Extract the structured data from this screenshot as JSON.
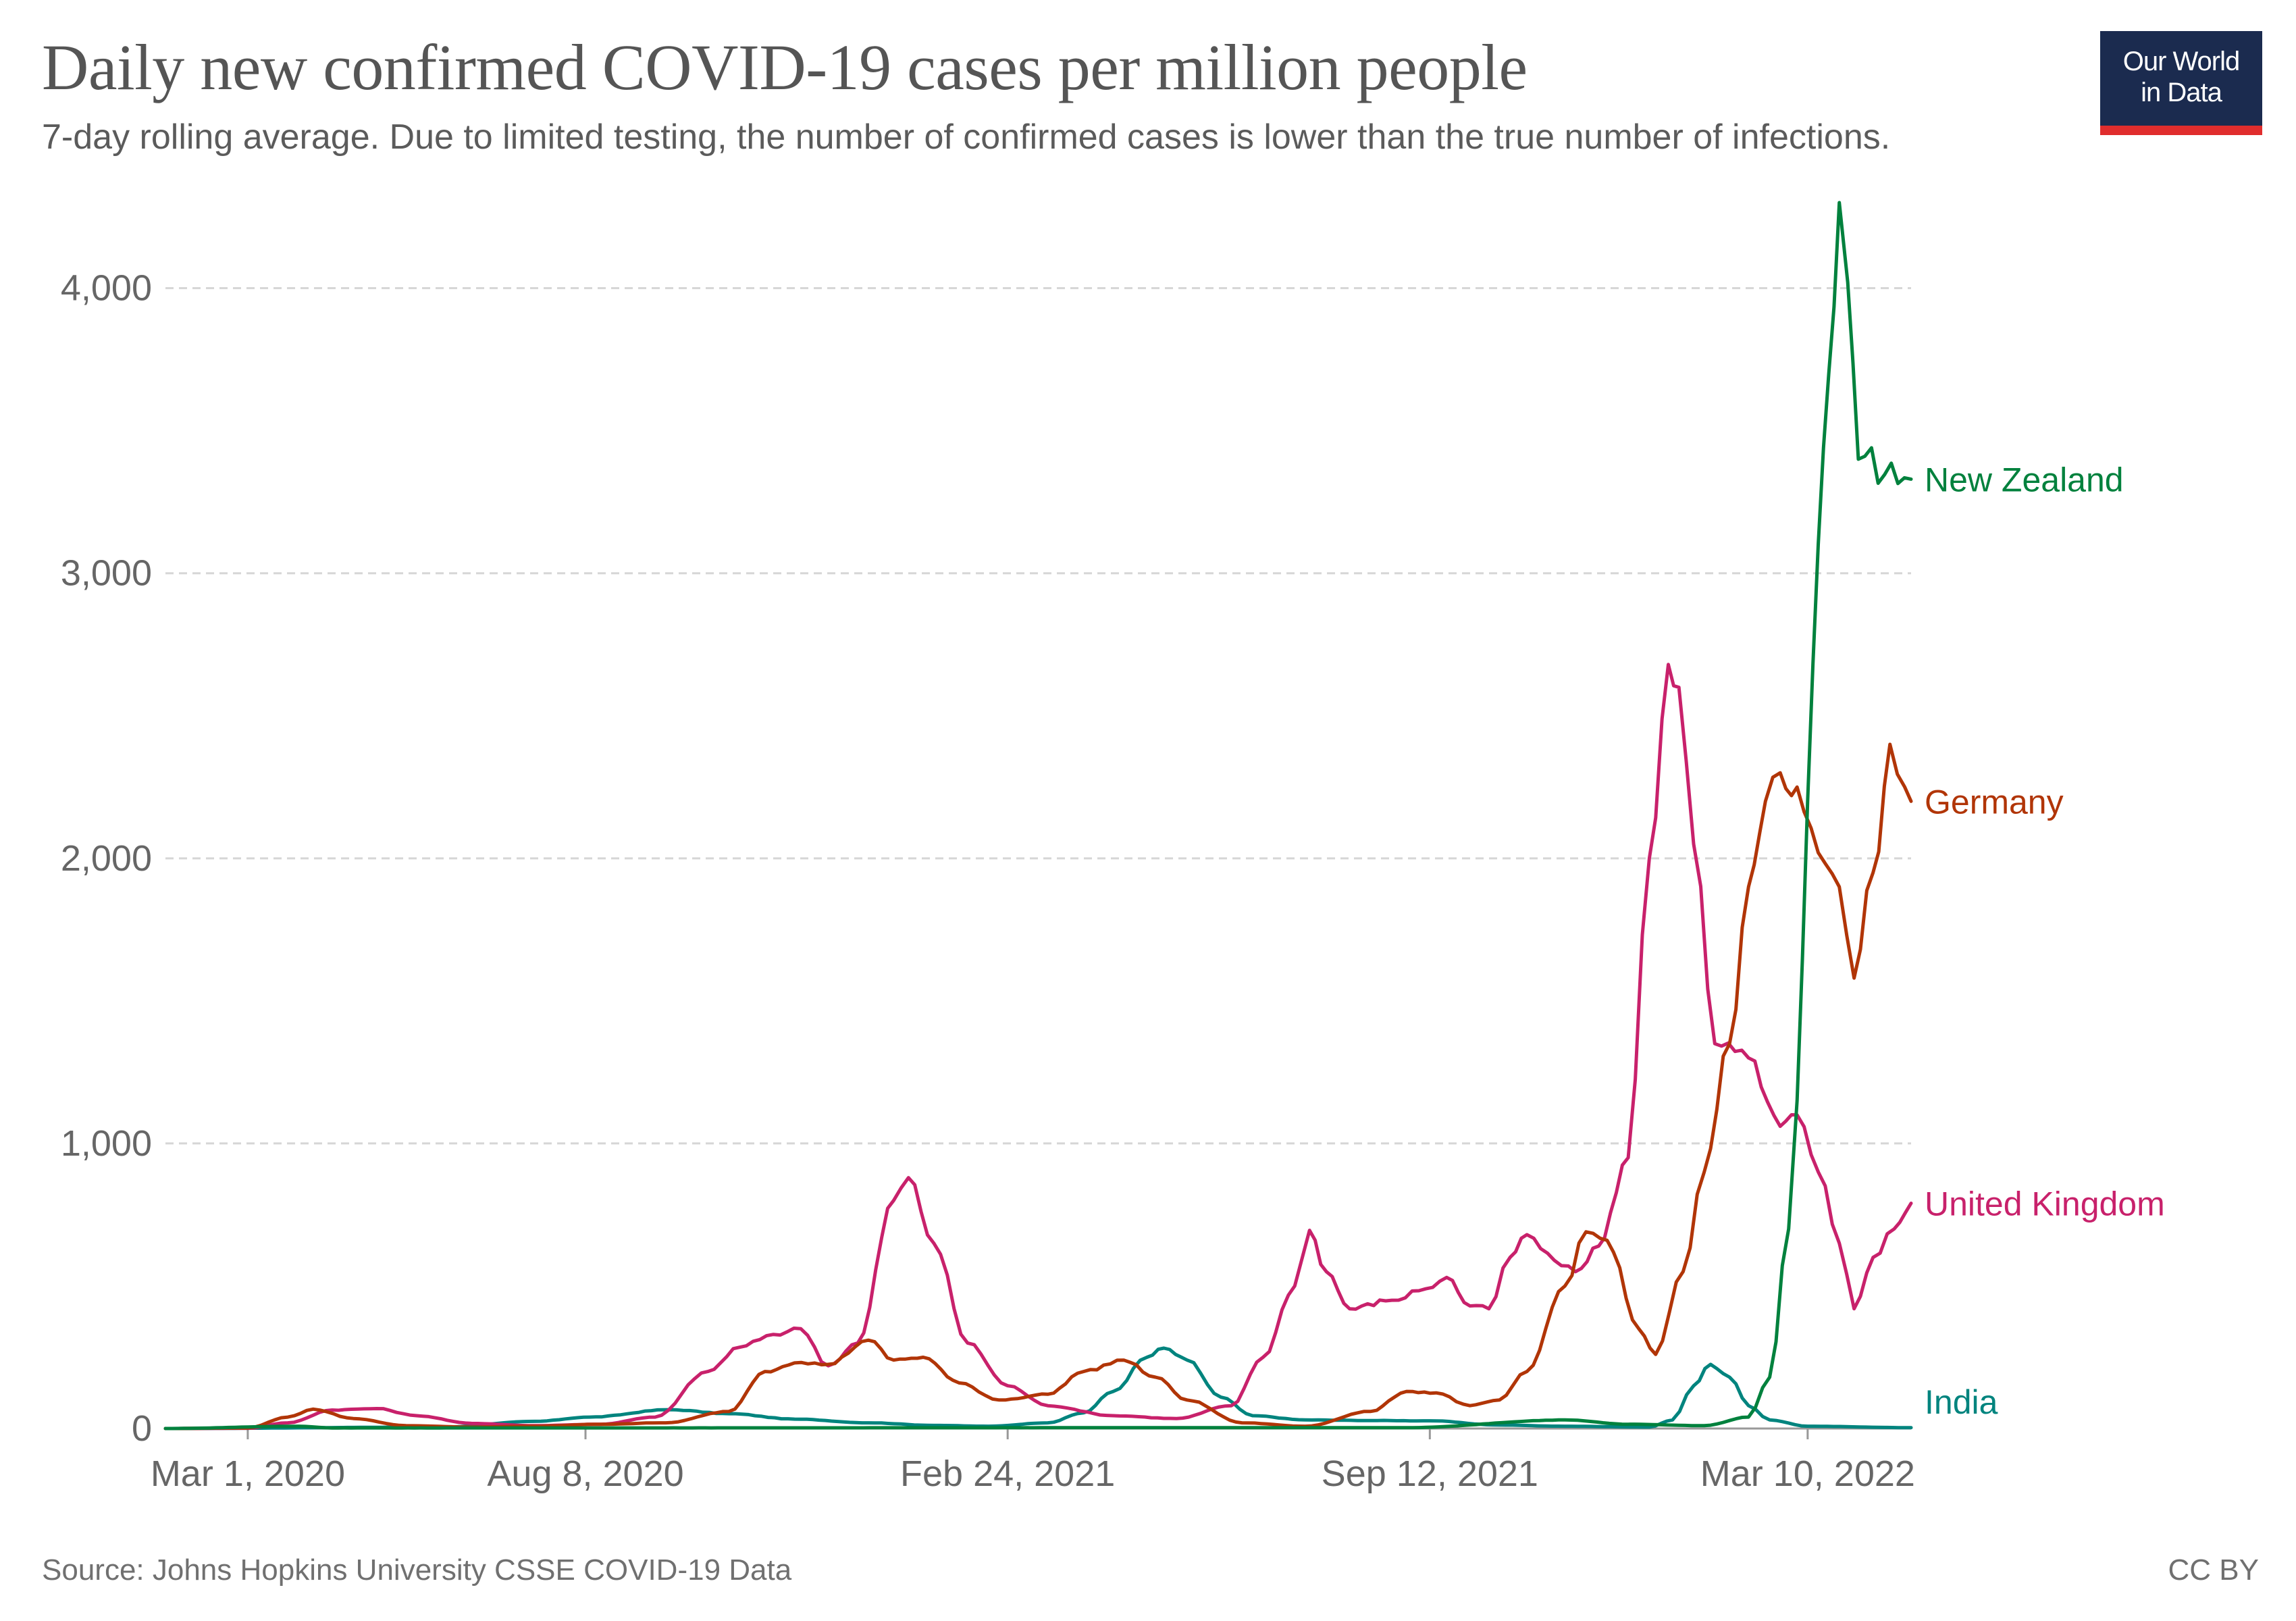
{
  "title": "Daily new confirmed COVID-19 cases per million people",
  "subtitle": "7-day rolling average. Due to limited testing, the number of confirmed cases is lower than the true number of infections.",
  "logo": {
    "line1": "Our World",
    "line2": "in Data"
  },
  "source": "Source: Johns Hopkins University CSSE COVID-19 Data",
  "license": "CC BY",
  "chart_data": {
    "type": "line",
    "x_domain": [
      "2020-01-22",
      "2022-04-28"
    ],
    "ylim": [
      0,
      4300
    ],
    "y_ticks": [
      0,
      1000,
      2000,
      3000,
      4000
    ],
    "y_tick_labels": [
      "0",
      "1,000",
      "2,000",
      "3,000",
      "4,000"
    ],
    "x_ticks": [
      "2020-03-01",
      "2020-08-08",
      "2021-02-24",
      "2021-09-12",
      "2022-03-10"
    ],
    "x_tick_labels": [
      "Mar 1, 2020",
      "Aug 8, 2020",
      "Feb 24, 2021",
      "Sep 12, 2021",
      "Mar 10, 2022"
    ],
    "grid": "horizontal dashed",
    "legend": "labels at line ends",
    "series": [
      {
        "name": "India",
        "color": "#00847e",
        "points": [
          [
            "2020-01-22",
            0
          ],
          [
            "2020-06-01",
            5
          ],
          [
            "2020-07-15",
            25
          ],
          [
            "2020-08-10",
            40
          ],
          [
            "2020-09-17",
            66
          ],
          [
            "2020-10-15",
            52
          ],
          [
            "2020-11-15",
            33
          ],
          [
            "2020-12-20",
            20
          ],
          [
            "2021-01-20",
            11
          ],
          [
            "2021-02-15",
            8
          ],
          [
            "2021-03-15",
            20
          ],
          [
            "2021-04-01",
            55
          ],
          [
            "2021-04-15",
            130
          ],
          [
            "2021-05-01",
            250
          ],
          [
            "2021-05-09",
            282
          ],
          [
            "2021-05-20",
            240
          ],
          [
            "2021-06-05",
            110
          ],
          [
            "2021-06-20",
            45
          ],
          [
            "2021-07-15",
            30
          ],
          [
            "2021-08-15",
            28
          ],
          [
            "2021-09-12",
            27
          ],
          [
            "2021-10-15",
            12
          ],
          [
            "2021-11-15",
            8
          ],
          [
            "2021-12-25",
            5
          ],
          [
            "2022-01-05",
            30
          ],
          [
            "2022-01-15",
            150
          ],
          [
            "2022-01-23",
            225
          ],
          [
            "2022-02-01",
            180
          ],
          [
            "2022-02-10",
            80
          ],
          [
            "2022-02-20",
            30
          ],
          [
            "2022-03-10",
            8
          ],
          [
            "2022-04-28",
            3
          ]
        ]
      },
      {
        "name": "United Kingdom",
        "color": "#c8216b",
        "points": [
          [
            "2020-01-22",
            0
          ],
          [
            "2020-03-01",
            1
          ],
          [
            "2020-03-20",
            20
          ],
          [
            "2020-04-10",
            65
          ],
          [
            "2020-05-01",
            70
          ],
          [
            "2020-05-20",
            45
          ],
          [
            "2020-06-15",
            18
          ],
          [
            "2020-07-15",
            10
          ],
          [
            "2020-08-15",
            15
          ],
          [
            "2020-09-10",
            40
          ],
          [
            "2020-10-05",
            200
          ],
          [
            "2020-10-20",
            285
          ],
          [
            "2020-11-05",
            330
          ],
          [
            "2020-11-18",
            350
          ],
          [
            "2020-12-01",
            220
          ],
          [
            "2020-12-15",
            300
          ],
          [
            "2021-01-01",
            800
          ],
          [
            "2021-01-08",
            880
          ],
          [
            "2021-01-20",
            650
          ],
          [
            "2021-02-05",
            300
          ],
          [
            "2021-02-24",
            150
          ],
          [
            "2021-03-15",
            80
          ],
          [
            "2021-04-15",
            45
          ],
          [
            "2021-05-15",
            35
          ],
          [
            "2021-06-10",
            80
          ],
          [
            "2021-06-25",
            250
          ],
          [
            "2021-07-10",
            500
          ],
          [
            "2021-07-17",
            695
          ],
          [
            "2021-07-25",
            550
          ],
          [
            "2021-08-05",
            420
          ],
          [
            "2021-08-25",
            450
          ],
          [
            "2021-09-10",
            490
          ],
          [
            "2021-09-20",
            530
          ],
          [
            "2021-10-01",
            430
          ],
          [
            "2021-10-10",
            420
          ],
          [
            "2021-10-20",
            600
          ],
          [
            "2021-10-28",
            680
          ],
          [
            "2021-11-10",
            590
          ],
          [
            "2021-11-20",
            550
          ],
          [
            "2021-12-01",
            640
          ],
          [
            "2021-12-15",
            950
          ],
          [
            "2021-12-25",
            2000
          ],
          [
            "2022-01-03",
            2680
          ],
          [
            "2022-01-08",
            2600
          ],
          [
            "2022-01-15",
            2050
          ],
          [
            "2022-01-25",
            1350
          ],
          [
            "2022-02-10",
            1300
          ],
          [
            "2022-02-25",
            1060
          ],
          [
            "2022-03-05",
            1100
          ],
          [
            "2022-03-15",
            900
          ],
          [
            "2022-03-25",
            650
          ],
          [
            "2022-04-01",
            420
          ],
          [
            "2022-04-10",
            600
          ],
          [
            "2022-04-20",
            700
          ],
          [
            "2022-04-28",
            790
          ]
        ]
      },
      {
        "name": "Germany",
        "color": "#b13507",
        "points": [
          [
            "2020-01-22",
            0
          ],
          [
            "2020-03-01",
            2
          ],
          [
            "2020-03-20",
            40
          ],
          [
            "2020-04-01",
            68
          ],
          [
            "2020-04-20",
            35
          ],
          [
            "2020-05-15",
            10
          ],
          [
            "2020-06-15",
            5
          ],
          [
            "2020-07-15",
            8
          ],
          [
            "2020-08-15",
            15
          ],
          [
            "2020-09-15",
            20
          ],
          [
            "2020-10-15",
            60
          ],
          [
            "2020-11-01",
            200
          ],
          [
            "2020-11-15",
            230
          ],
          [
            "2020-12-01",
            225
          ],
          [
            "2020-12-20",
            310
          ],
          [
            "2021-01-01",
            240
          ],
          [
            "2021-01-15",
            250
          ],
          [
            "2021-02-01",
            160
          ],
          [
            "2021-02-20",
            100
          ],
          [
            "2021-03-15",
            120
          ],
          [
            "2021-04-01",
            200
          ],
          [
            "2021-04-20",
            240
          ],
          [
            "2021-05-05",
            180
          ],
          [
            "2021-05-20",
            100
          ],
          [
            "2021-06-15",
            20
          ],
          [
            "2021-07-15",
            8
          ],
          [
            "2021-08-15",
            60
          ],
          [
            "2021-09-01",
            130
          ],
          [
            "2021-09-15",
            125
          ],
          [
            "2021-10-01",
            80
          ],
          [
            "2021-10-15",
            100
          ],
          [
            "2021-10-28",
            200
          ],
          [
            "2021-11-15",
            500
          ],
          [
            "2021-11-25",
            690
          ],
          [
            "2021-12-05",
            660
          ],
          [
            "2021-12-20",
            350
          ],
          [
            "2021-12-28",
            260
          ],
          [
            "2022-01-10",
            550
          ],
          [
            "2022-01-20",
            900
          ],
          [
            "2022-02-01",
            1350
          ],
          [
            "2022-02-10",
            1900
          ],
          [
            "2022-02-18",
            2200
          ],
          [
            "2022-02-25",
            2300
          ],
          [
            "2022-03-05",
            2250
          ],
          [
            "2022-03-15",
            2020
          ],
          [
            "2022-03-25",
            1900
          ],
          [
            "2022-04-01",
            1580
          ],
          [
            "2022-04-10",
            1950
          ],
          [
            "2022-04-18",
            2400
          ],
          [
            "2022-04-25",
            2250
          ],
          [
            "2022-04-28",
            2200
          ]
        ]
      },
      {
        "name": "New Zealand",
        "color": "#00813d",
        "points": [
          [
            "2020-01-22",
            0
          ],
          [
            "2020-03-25",
            8
          ],
          [
            "2020-04-10",
            2
          ],
          [
            "2021-09-01",
            3
          ],
          [
            "2021-11-15",
            30
          ],
          [
            "2021-12-15",
            15
          ],
          [
            "2022-01-20",
            10
          ],
          [
            "2022-02-10",
            40
          ],
          [
            "2022-02-20",
            180
          ],
          [
            "2022-03-01",
            700
          ],
          [
            "2022-03-05",
            1150
          ],
          [
            "2022-03-10",
            2200
          ],
          [
            "2022-03-15",
            3100
          ],
          [
            "2022-03-20",
            3700
          ],
          [
            "2022-03-25",
            4300
          ],
          [
            "2022-03-29",
            4020
          ],
          [
            "2022-04-03",
            3400
          ],
          [
            "2022-04-28",
            3330
          ]
        ]
      }
    ]
  }
}
